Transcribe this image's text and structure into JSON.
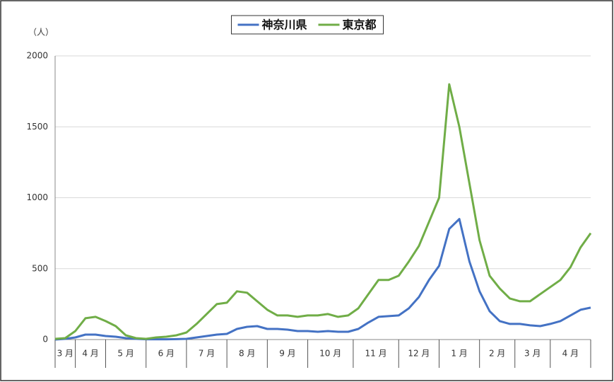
{
  "chart_data": {
    "type": "line",
    "y_label": "（人）",
    "categories": [
      null,
      "3 月",
      null,
      "4 月",
      null,
      null,
      null,
      "5 月",
      null,
      null,
      null,
      "6 月",
      null,
      null,
      null,
      "7 月",
      null,
      null,
      null,
      "8 月",
      null,
      null,
      null,
      "9 月",
      null,
      null,
      null,
      "10 月",
      null,
      null,
      null,
      null,
      "11 月",
      null,
      null,
      null,
      "12 月",
      null,
      null,
      null,
      "1 月",
      null,
      null,
      null,
      "2 月",
      null,
      null,
      "3 月",
      null,
      null,
      null,
      "4 月",
      null,
      null
    ],
    "series": [
      {
        "name": "神奈川県",
        "color": "#4472c4",
        "values": [
          0,
          5,
          15,
          35,
          35,
          25,
          20,
          10,
          5,
          2,
          2,
          2,
          3,
          5,
          15,
          25,
          35,
          40,
          75,
          90,
          95,
          75,
          75,
          70,
          60,
          60,
          55,
          60,
          55,
          55,
          75,
          120,
          160,
          165,
          170,
          220,
          300,
          420,
          520,
          780,
          850,
          550,
          340,
          200,
          130,
          110,
          110,
          100,
          95,
          110,
          130,
          170,
          210,
          225
        ]
      },
      {
        "name": "東京都",
        "color": "#70ad47",
        "values": [
          5,
          10,
          60,
          150,
          160,
          130,
          95,
          30,
          10,
          5,
          15,
          20,
          30,
          50,
          110,
          180,
          250,
          260,
          340,
          330,
          270,
          210,
          170,
          170,
          160,
          170,
          170,
          180,
          160,
          170,
          220,
          320,
          420,
          420,
          450,
          550,
          660,
          830,
          1000,
          1800,
          1500,
          1100,
          700,
          450,
          360,
          290,
          270,
          270,
          320,
          370,
          420,
          510,
          650,
          750
        ]
      }
    ],
    "ylim": [
      0,
      2000
    ],
    "yticks": [
      0,
      500,
      1000,
      1500,
      2000
    ],
    "grid": true,
    "legend": "top"
  }
}
